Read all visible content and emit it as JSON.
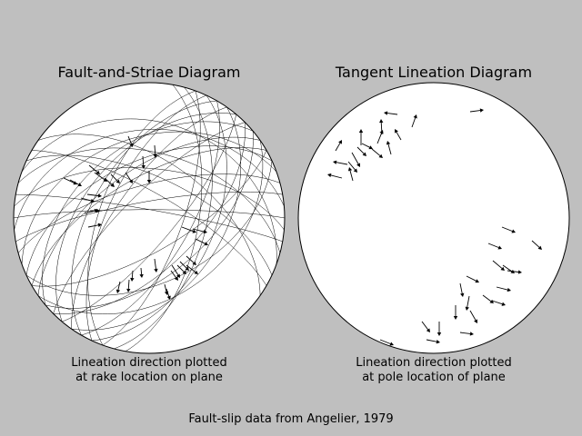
{
  "figure": {
    "caption": "Fault-slip data from Angelier, 1979",
    "background": "#bfbfbf"
  },
  "chart_data": [
    {
      "type": "scatter",
      "projection": "lower-hemisphere stereonet",
      "title": "Fault-and-Striae Diagram",
      "caption_lines": [
        "Lineation direction plotted",
        "at rake location on plane"
      ],
      "planes": [
        {
          "strike": 10,
          "dip": 60
        },
        {
          "strike": 15,
          "dip": 55
        },
        {
          "strike": 20,
          "dip": 70
        },
        {
          "strike": 25,
          "dip": 50
        },
        {
          "strike": 30,
          "dip": 65
        },
        {
          "strike": 35,
          "dip": 45
        },
        {
          "strike": 40,
          "dip": 75
        },
        {
          "strike": 45,
          "dip": 60
        },
        {
          "strike": 50,
          "dip": 55
        },
        {
          "strike": 55,
          "dip": 40
        },
        {
          "strike": 60,
          "dip": 70
        },
        {
          "strike": 65,
          "dip": 50
        },
        {
          "strike": 200,
          "dip": 60
        },
        {
          "strike": 205,
          "dip": 65
        },
        {
          "strike": 210,
          "dip": 55
        },
        {
          "strike": 215,
          "dip": 70
        },
        {
          "strike": 220,
          "dip": 50
        },
        {
          "strike": 225,
          "dip": 75
        },
        {
          "strike": 230,
          "dip": 45
        },
        {
          "strike": 235,
          "dip": 60
        },
        {
          "strike": 240,
          "dip": 65
        },
        {
          "strike": 245,
          "dip": 55
        },
        {
          "strike": 250,
          "dip": 40
        },
        {
          "strike": 255,
          "dip": 70
        },
        {
          "strike": 260,
          "dip": 80
        },
        {
          "strike": 265,
          "dip": 35
        },
        {
          "strike": 270,
          "dip": 85
        },
        {
          "strike": 275,
          "dip": 60
        },
        {
          "strike": 280,
          "dip": 85
        },
        {
          "strike": 285,
          "dip": 50
        },
        {
          "strike": 290,
          "dip": 30
        },
        {
          "strike": 295,
          "dip": 65
        },
        {
          "strike": 300,
          "dip": 75
        },
        {
          "strike": 305,
          "dip": 55
        }
      ],
      "arrow_color": "#000000",
      "plane_color": "#000000"
    },
    {
      "type": "scatter",
      "projection": "lower-hemisphere stereonet",
      "title": "Tangent Lineation Diagram",
      "caption_lines": [
        "Lineation direction plotted",
        "at pole location of plane"
      ],
      "arrow_color": "#000000"
    }
  ]
}
